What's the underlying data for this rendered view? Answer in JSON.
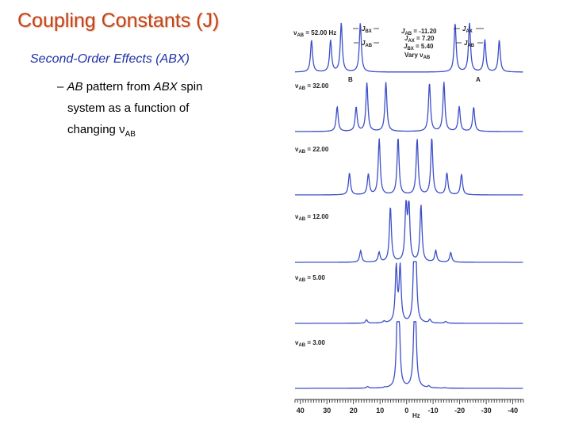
{
  "slide": {
    "title": "Coupling Constants (J)",
    "subtitle": "Second-Order Effects (ABX)",
    "bullet": {
      "dash": "–",
      "ab": "AB",
      "pattern_from": " pattern from ",
      "abx": "ABX",
      "spin": " spin",
      "line2": "system as a function of",
      "line3_prefix": "changing ",
      "nu": "ν",
      "nu_sub": "AB"
    }
  },
  "figure": {
    "top_labels": {
      "nu_top": "ν",
      "nu_top_sub": "AB",
      "nu_top_value": " = 52.00 Hz",
      "jbx": "J",
      "jbx_sub": "BX",
      "jab_left": "J",
      "jab_left_sub": "AB",
      "jab_val_j": "J",
      "jab_val_sub": "AB",
      "jab_val": " = -11.20",
      "jax_val_j": "J",
      "jax_val_sub": "AX",
      "jax_val": " = 7.20",
      "jbx_val_j": "J",
      "jbx_val_sub": "BX",
      "jbx_val": " = 5.40",
      "vary_prefix": "Vary ",
      "vary_nu": "ν",
      "vary_sub": "AB",
      "jax_right": "J",
      "jax_right_sub": "AX",
      "jab_right": "J",
      "jab_right_sub": "AB",
      "b_label": "B",
      "a_label": "A"
    },
    "axis_unit": "Hz",
    "spectra": [
      {
        "label_value": " = 32.00",
        "nu_ab": 32.0
      },
      {
        "label_value": " = 22.00",
        "nu_ab": 22.0
      },
      {
        "label_value": " = 12.00",
        "nu_ab": 12.0
      },
      {
        "label_value": " = 5.00",
        "nu_ab": 5.0
      },
      {
        "label_value": " = 3.00",
        "nu_ab": 3.0
      }
    ],
    "nu_ab_top": 52.0,
    "j_ab": -11.2,
    "j_ax": 7.2,
    "j_bx": 5.4,
    "axis_ticks": [
      40,
      30,
      20,
      10,
      0,
      -10,
      -20,
      -30,
      -40
    ],
    "axis_range": [
      42,
      -44
    ]
  },
  "chart_data": {
    "type": "line",
    "title": "",
    "xlabel": "Hz",
    "ylabel": "",
    "xlim": [
      42,
      -44
    ],
    "x_ticks": [
      40,
      30,
      20,
      10,
      0,
      -10,
      -20,
      -30,
      -40
    ],
    "series": [
      {
        "nu_ab": 52.0
      },
      {
        "nu_ab": 32.0
      },
      {
        "nu_ab": 22.0
      },
      {
        "nu_ab": 12.0
      },
      {
        "nu_ab": 5.0
      },
      {
        "nu_ab": 3.0
      }
    ]
  }
}
